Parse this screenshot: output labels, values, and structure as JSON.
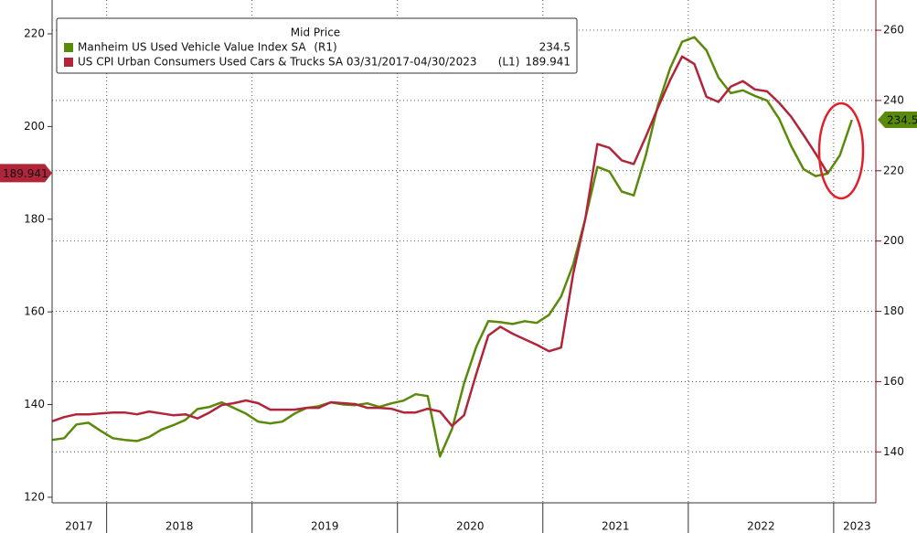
{
  "chart_data": {
    "type": "line",
    "legend_title": "Mid Price",
    "x": [
      2017.625,
      2017.708,
      2017.792,
      2017.875,
      2017.958,
      2018.042,
      2018.125,
      2018.208,
      2018.292,
      2018.375,
      2018.458,
      2018.542,
      2018.625,
      2018.708,
      2018.792,
      2018.875,
      2018.958,
      2019.042,
      2019.125,
      2019.208,
      2019.292,
      2019.375,
      2019.458,
      2019.542,
      2019.625,
      2019.708,
      2019.792,
      2019.875,
      2019.958,
      2020.042,
      2020.125,
      2020.208,
      2020.292,
      2020.375,
      2020.458,
      2020.542,
      2020.625,
      2020.708,
      2020.792,
      2020.875,
      2020.958,
      2021.042,
      2021.125,
      2021.208,
      2021.292,
      2021.375,
      2021.458,
      2021.542,
      2021.625,
      2021.708,
      2021.792,
      2021.875,
      2021.958,
      2022.042,
      2022.125,
      2022.208,
      2022.292,
      2022.375,
      2022.458,
      2022.542,
      2022.625,
      2022.708,
      2022.792,
      2022.875,
      2022.958,
      2023.042,
      2023.125
    ],
    "series": [
      {
        "name": "Manheim US Used Vehicle Value Index SA",
        "legend_tag": "(R1)",
        "color": "#5a8a0a",
        "axis": "y2",
        "values": [
          143.4,
          143.9,
          147.8,
          148.3,
          146.0,
          143.9,
          143.4,
          143.1,
          144.2,
          146.3,
          147.6,
          149.1,
          152.2,
          152.8,
          154.1,
          152.5,
          150.9,
          148.6,
          148.1,
          148.6,
          150.9,
          152.5,
          153.0,
          154.1,
          153.5,
          153.3,
          153.8,
          152.8,
          153.8,
          154.6,
          156.4,
          155.9,
          138.7,
          146.5,
          159.5,
          169.9,
          177.2,
          176.9,
          176.4,
          177.2,
          176.7,
          179.0,
          184.2,
          193.3,
          206.3,
          221.1,
          219.8,
          214.1,
          213.0,
          224.4,
          238.7,
          249.1,
          256.7,
          258.0,
          254.3,
          246.5,
          242.1,
          242.9,
          241.3,
          240.0,
          234.8,
          227.0,
          220.5,
          218.5,
          219.2,
          224.4,
          234.5
        ]
      },
      {
        "name": "US CPI Urban Consumers Used Cars & Trucks SA 03/31/2017-04/30/2023",
        "legend_tag": "(L1)",
        "color": "#b0253a",
        "axis": "y",
        "values": [
          136.4,
          137.3,
          137.9,
          137.9,
          138.1,
          138.3,
          138.3,
          137.9,
          138.5,
          138.1,
          137.7,
          137.9,
          137.0,
          138.3,
          139.9,
          140.3,
          140.9,
          140.3,
          138.9,
          138.9,
          138.9,
          139.3,
          139.3,
          140.5,
          140.3,
          140.1,
          139.3,
          139.3,
          139.1,
          138.3,
          138.3,
          139.1,
          138.5,
          135.4,
          137.7,
          146.6,
          154.9,
          156.8,
          155.3,
          154.1,
          152.9,
          151.5,
          152.3,
          168.2,
          180.1,
          196.2,
          195.4,
          192.7,
          191.9,
          197.8,
          204.1,
          210.0,
          215.1,
          213.5,
          206.4,
          205.3,
          208.6,
          209.8,
          208.0,
          207.6,
          205.1,
          202.1,
          198.2,
          194.2,
          189.941,
          null,
          null
        ]
      }
    ],
    "xlim": [
      2017.625,
      2023.29
    ],
    "xticks": [
      {
        "value": 2017.81,
        "label": "2017"
      },
      {
        "value": 2018.5,
        "label": "2018"
      },
      {
        "value": 2019.5,
        "label": "2019"
      },
      {
        "value": 2020.5,
        "label": "2020"
      },
      {
        "value": 2021.5,
        "label": "2021"
      },
      {
        "value": 2022.5,
        "label": "2022"
      },
      {
        "value": 2023.16,
        "label": "2023"
      }
    ],
    "ylim": [
      118.8,
      227.3
    ],
    "yticks": [
      120,
      140,
      160,
      180,
      200,
      220
    ],
    "y2lim": [
      125.5,
      268.6
    ],
    "y2ticks": [
      140,
      160,
      180,
      200,
      220,
      240,
      260
    ],
    "grid": true
  }
}
